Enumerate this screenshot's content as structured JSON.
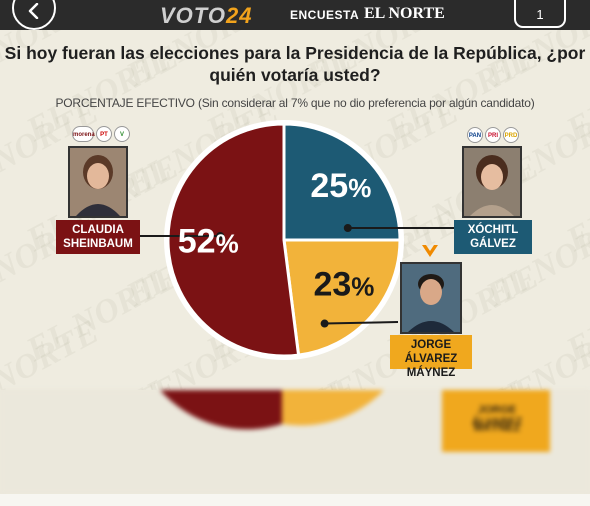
{
  "header": {
    "brand": "VOTO",
    "brand_accent": "24",
    "survey_label": "ENCUESTA",
    "newspaper": "EL NORTE",
    "counter": "1"
  },
  "icons": {
    "back": "chevron-left-icon"
  },
  "colors": {
    "sheinbaum": "#7b1214",
    "galvez": "#1d5a74",
    "maynez": "#f2b33a",
    "header_bg": "#2b2b2b",
    "maynez_tag": "#f0a81e"
  },
  "chart_data": {
    "type": "pie",
    "title": "Si hoy fueran las elecciones para la Presidencia de la República, ¿por quién votaría usted?",
    "subtitle": "PORCENTAJE EFECTIVO (Sin considerar al 7% que no dio preferencia por algún candidato)",
    "slices": [
      {
        "label": "CLAUDIA SHEINBAUM",
        "value": 52,
        "display": "52%",
        "color": "#7b1214"
      },
      {
        "label": "XÓCHITL GÁLVEZ",
        "value": 25,
        "display": "25%",
        "color": "#1d5a74"
      },
      {
        "label": "JORGE ÁLVAREZ MÁYNEZ",
        "value": 23,
        "display": "23%",
        "color": "#f2b33a"
      }
    ]
  },
  "candidates": {
    "sheinbaum": {
      "line1": "CLAUDIA",
      "line2": "SHEINBAUM",
      "parties": [
        "morena",
        "PT",
        "V"
      ]
    },
    "galvez": {
      "line1": "XÓCHITL",
      "line2": "GÁLVEZ",
      "parties": [
        "PAN",
        "PRI",
        "PRD"
      ]
    },
    "maynez": {
      "line1": "JORGE ÁLVAREZ",
      "line2": "MÁYNEZ"
    }
  },
  "blurred": {
    "line1": "JORGE ÁLVAREZ",
    "line2": "MÁYNEZ"
  }
}
